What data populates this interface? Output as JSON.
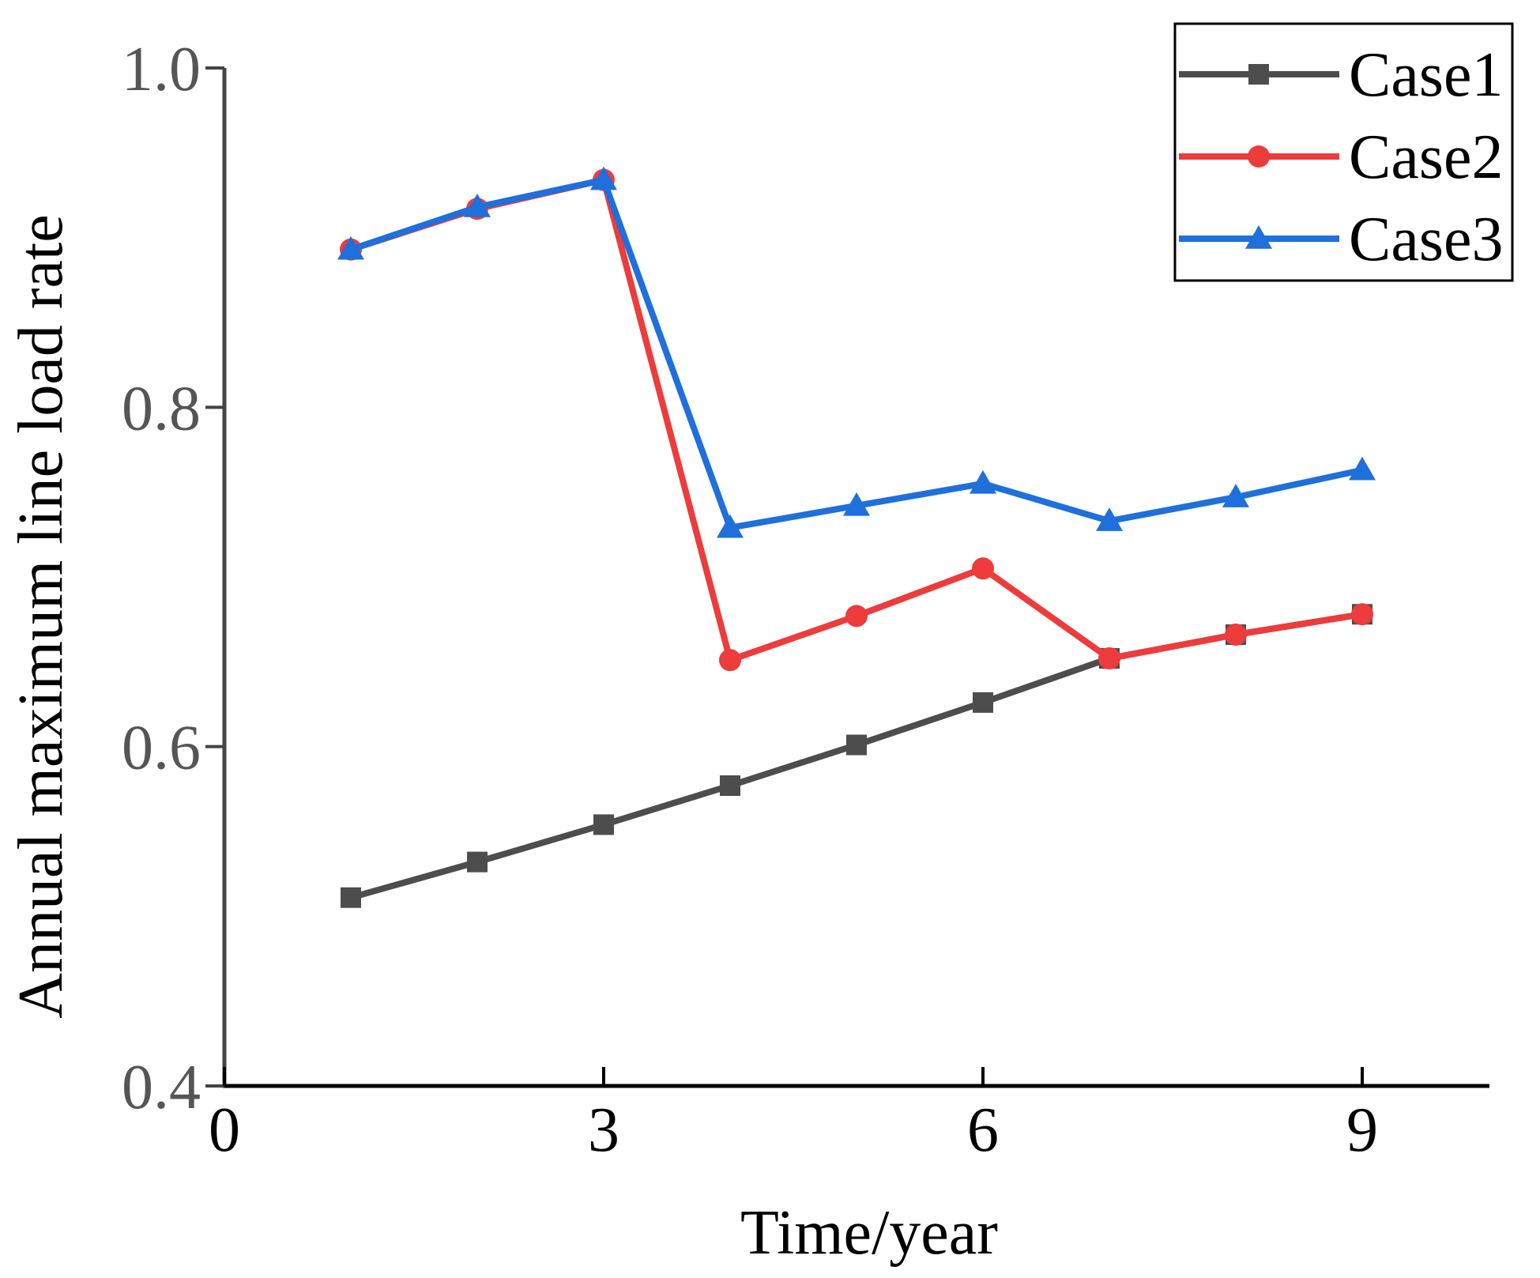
{
  "chart_data": {
    "type": "line",
    "title": "",
    "xlabel": "Time/year",
    "ylabel": "Annual maximum line load rate",
    "xlim": [
      0,
      10
    ],
    "ylim": [
      0.4,
      1.0
    ],
    "xticks": [
      0,
      3,
      6,
      9
    ],
    "xtick_labels": [
      "0",
      "3",
      "6",
      "9"
    ],
    "yticks": [
      0.4,
      0.6,
      0.8,
      1.0
    ],
    "ytick_labels": [
      "0.4",
      "0.6",
      "0.8",
      "1.0"
    ],
    "grid": false,
    "legend_position": "top-right",
    "x": [
      1,
      2,
      3,
      4,
      5,
      6,
      7,
      8,
      9
    ],
    "series": [
      {
        "name": "Case1",
        "color": "#4d4d4d",
        "marker": "square",
        "values": [
          0.511,
          0.532,
          0.554,
          0.577,
          0.601,
          0.626,
          0.652,
          0.666,
          0.678
        ]
      },
      {
        "name": "Case2",
        "color": "#ee3b3b",
        "marker": "circle",
        "values": [
          0.893,
          0.917,
          0.934,
          0.651,
          0.677,
          0.705,
          0.652,
          0.666,
          0.678
        ]
      },
      {
        "name": "Case3",
        "color": "#1f6fdc",
        "marker": "triangle",
        "values": [
          0.893,
          0.918,
          0.934,
          0.729,
          0.742,
          0.755,
          0.733,
          0.747,
          0.763
        ]
      }
    ]
  }
}
